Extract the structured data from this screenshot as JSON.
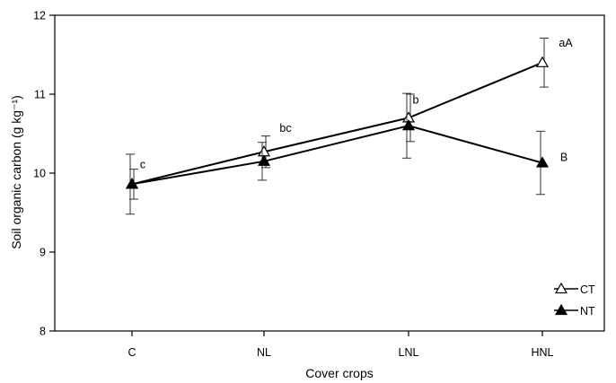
{
  "chart_data": {
    "type": "line",
    "title": "",
    "xlabel": "Cover crops",
    "ylabel": "Soil organic carbon (g kg⁻¹)",
    "categories": [
      "C",
      "NL",
      "LNL",
      "HNL"
    ],
    "ylim": [
      8,
      12
    ],
    "yticks": [
      "8",
      "9",
      "10",
      "11",
      "12"
    ],
    "grid": false,
    "legend_position": "bottom-right",
    "series": [
      {
        "name": "CT",
        "marker": "open-triangle",
        "values": [
          9.86,
          10.27,
          10.7,
          11.4
        ],
        "error": [
          0.19,
          0.2,
          0.3,
          0.31
        ],
        "labels": [
          "c",
          "bc",
          "b",
          "aA"
        ]
      },
      {
        "name": "NT",
        "marker": "filled-triangle",
        "values": [
          9.86,
          10.15,
          10.6,
          10.13
        ],
        "error": [
          0.38,
          0.24,
          0.41,
          0.4
        ],
        "labels": [
          "",
          "",
          "",
          "B"
        ]
      }
    ]
  }
}
